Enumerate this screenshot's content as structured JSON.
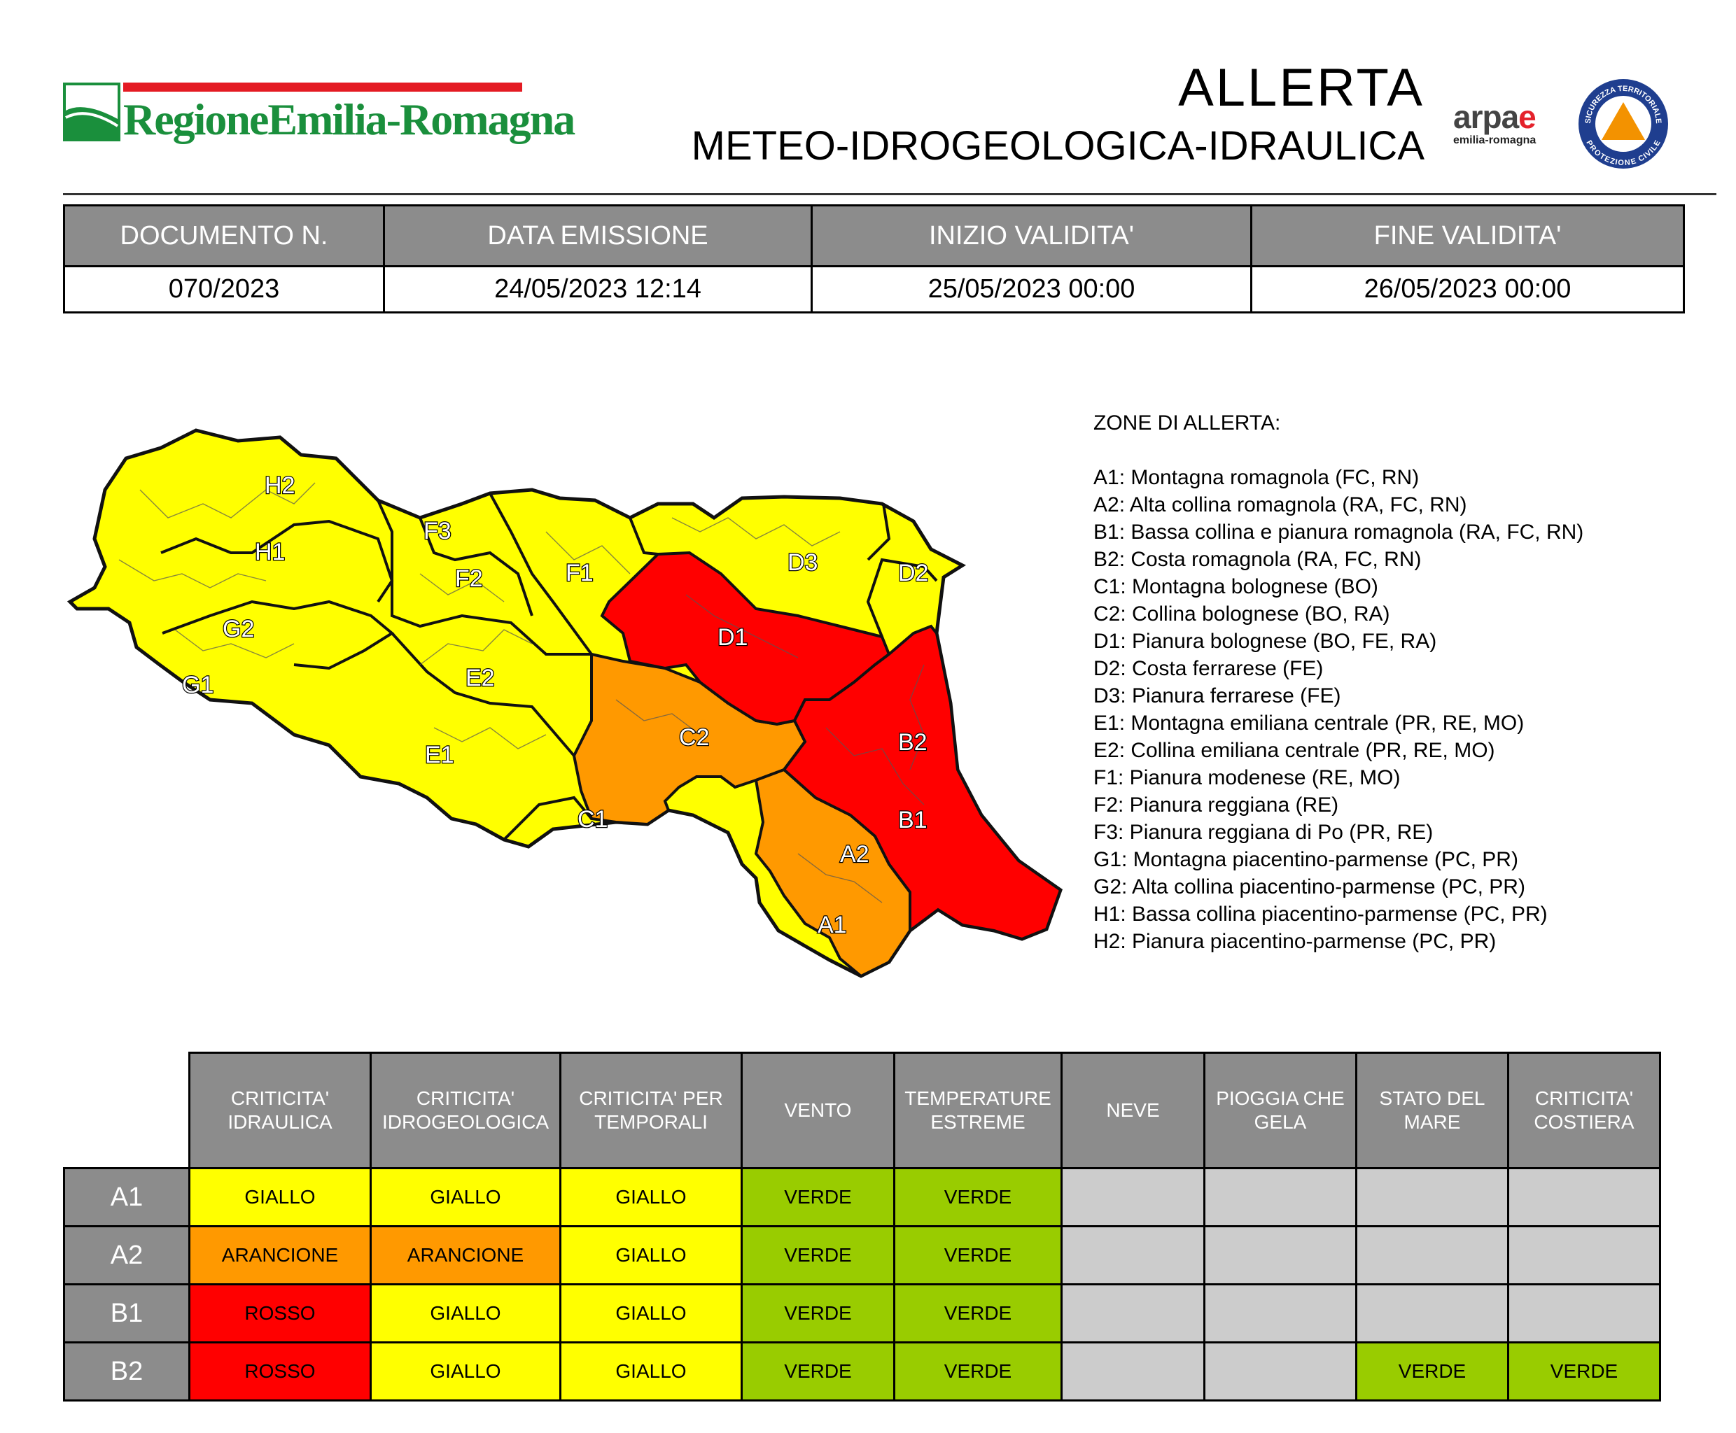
{
  "header": {
    "region_name": "RegioneEmilia-Romagna",
    "title_line1": "ALLERTA",
    "title_line2": "METEO-IDROGEOLOGICA-IDRAULICA",
    "arpae_logo_text": "arpae",
    "arpae_logo_sub": "emilia-romagna",
    "protezione_logo_top": "SICUREZZA TERRITORIALE",
    "protezione_logo_bottom": "PROTEZIONE CIVILE"
  },
  "document": {
    "headers": [
      "DOCUMENTO N.",
      "DATA EMISSIONE",
      "INIZIO VALIDITA'",
      "FINE VALIDITA'"
    ],
    "values": [
      "070/2023",
      "24/05/2023 12:14",
      "25/05/2023 00:00",
      "26/05/2023 00:00"
    ]
  },
  "colors": {
    "giallo": "#ffff00",
    "arancione": "#ff9900",
    "rosso": "#ff0000",
    "verde": "#99cc00",
    "not_applicable": "#cccccc",
    "header_grey": "#8c8c8c"
  },
  "map": {
    "zone_labels": [
      "H2",
      "H1",
      "F3",
      "F2",
      "F1",
      "G2",
      "G1",
      "E2",
      "E1",
      "D3",
      "D2",
      "D1",
      "C2",
      "C1",
      "B2",
      "B1",
      "A2",
      "A1"
    ]
  },
  "zones_list": {
    "title": "ZONE DI ALLERTA:",
    "items": [
      "A1: Montagna romagnola (FC, RN)",
      "A2: Alta collina romagnola (RA, FC, RN)",
      "B1: Bassa collina e pianura romagnola (RA, FC, RN)",
      "B2: Costa romagnola (RA, FC, RN)",
      "C1: Montagna bolognese (BO)",
      "C2: Collina bolognese (BO, RA)",
      "D1: Pianura bolognese (BO, FE, RA)",
      "D2: Costa ferrarese (FE)",
      "D3: Pianura ferrarese (FE)",
      "E1: Montagna emiliana centrale (PR, RE, MO)",
      "E2: Collina emiliana centrale (PR, RE, MO)",
      "F1: Pianura modenese (RE, MO)",
      "F2: Pianura reggiana (RE)",
      "F3: Pianura reggiana di Po (PR, RE)",
      "G1: Montagna piacentino-parmense (PC, PR)",
      "G2: Alta collina piacentino-parmense (PC, PR)",
      "H1: Bassa collina piacentino-parmense (PC, PR)",
      "H2: Pianura piacentino-parmense (PC, PR)"
    ]
  },
  "alert_table": {
    "columns": [
      [
        "CRITICITA'",
        "IDRAULICA"
      ],
      [
        "CRITICITA'",
        "IDROGEOLOGICA"
      ],
      [
        "CRITICITA' PER",
        "TEMPORALI"
      ],
      [
        "VENTO"
      ],
      [
        "TEMPERATURE",
        "ESTREME"
      ],
      [
        "NEVE"
      ],
      [
        "PIOGGIA CHE",
        "GELA"
      ],
      [
        "STATO DEL",
        "MARE"
      ],
      [
        "CRITICITA'",
        "COSTIERA"
      ]
    ],
    "rows": [
      {
        "zone": "A1",
        "cells": [
          "GIALLO",
          "GIALLO",
          "GIALLO",
          "VERDE",
          "VERDE",
          "",
          "",
          "",
          ""
        ]
      },
      {
        "zone": "A2",
        "cells": [
          "ARANCIONE",
          "ARANCIONE",
          "GIALLO",
          "VERDE",
          "VERDE",
          "",
          "",
          "",
          ""
        ]
      },
      {
        "zone": "B1",
        "cells": [
          "ROSSO",
          "GIALLO",
          "GIALLO",
          "VERDE",
          "VERDE",
          "",
          "",
          "",
          ""
        ]
      },
      {
        "zone": "B2",
        "cells": [
          "ROSSO",
          "GIALLO",
          "GIALLO",
          "VERDE",
          "VERDE",
          "",
          "",
          "VERDE",
          "VERDE"
        ]
      }
    ]
  }
}
